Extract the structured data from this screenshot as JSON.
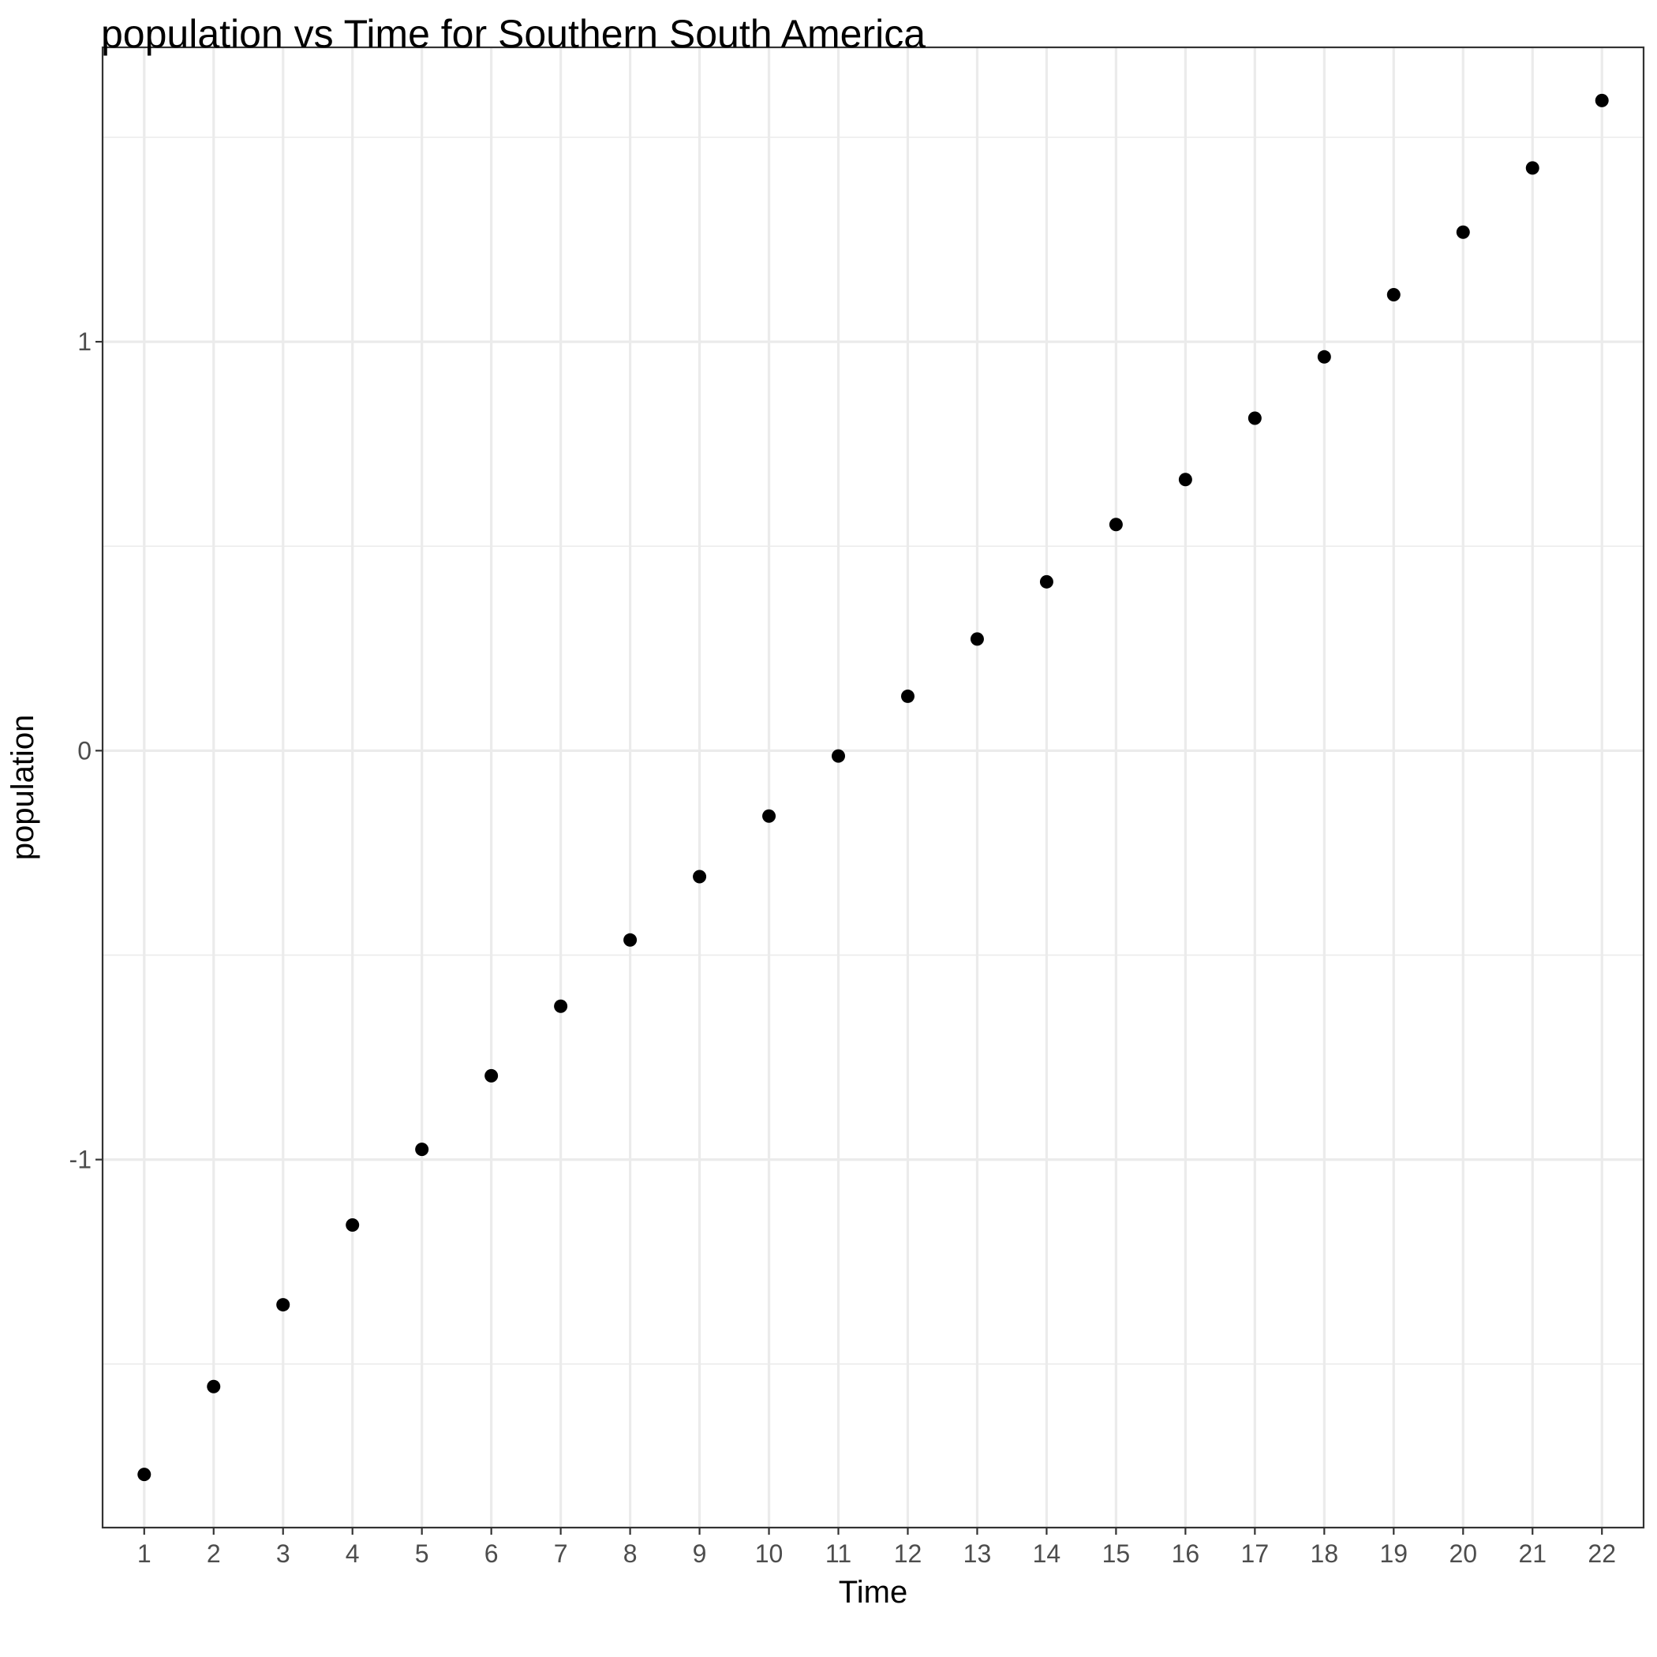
{
  "chart_data": {
    "type": "scatter",
    "title": "population  vs Time for Southern South America",
    "xlabel": "Time",
    "ylabel": "population",
    "x": [
      1,
      2,
      3,
      4,
      5,
      6,
      7,
      8,
      9,
      10,
      11,
      12,
      13,
      14,
      15,
      16,
      17,
      18,
      19,
      20,
      21,
      22
    ],
    "y": [
      -1.77,
      -1.555,
      -1.355,
      -1.16,
      -0.975,
      -0.795,
      -0.625,
      -0.463,
      -0.308,
      -0.16,
      -0.013,
      0.133,
      0.273,
      0.413,
      0.553,
      0.663,
      0.813,
      0.963,
      1.115,
      1.268,
      1.425,
      1.59
    ],
    "x_ticks": [
      "1",
      "2",
      "3",
      "4",
      "5",
      "6",
      "7",
      "8",
      "9",
      "10",
      "11",
      "12",
      "13",
      "14",
      "15",
      "16",
      "17",
      "18",
      "19",
      "20",
      "21",
      "22"
    ],
    "y_ticks": [
      {
        "value": -1,
        "label": "-1"
      },
      {
        "value": 0,
        "label": "0"
      },
      {
        "value": 1,
        "label": "1"
      }
    ],
    "y_minor_ticks": [
      -1.5,
      -0.5,
      0.5,
      1.5
    ],
    "xlim": [
      0.4,
      22.6
    ],
    "ylim": [
      -1.9,
      1.72
    ],
    "grid": true,
    "legend": "none",
    "point_color": "#000000",
    "grid_color": "#ebebeb",
    "panel_border_color": "#333333",
    "tick_label_color": "#4d4d4d"
  }
}
